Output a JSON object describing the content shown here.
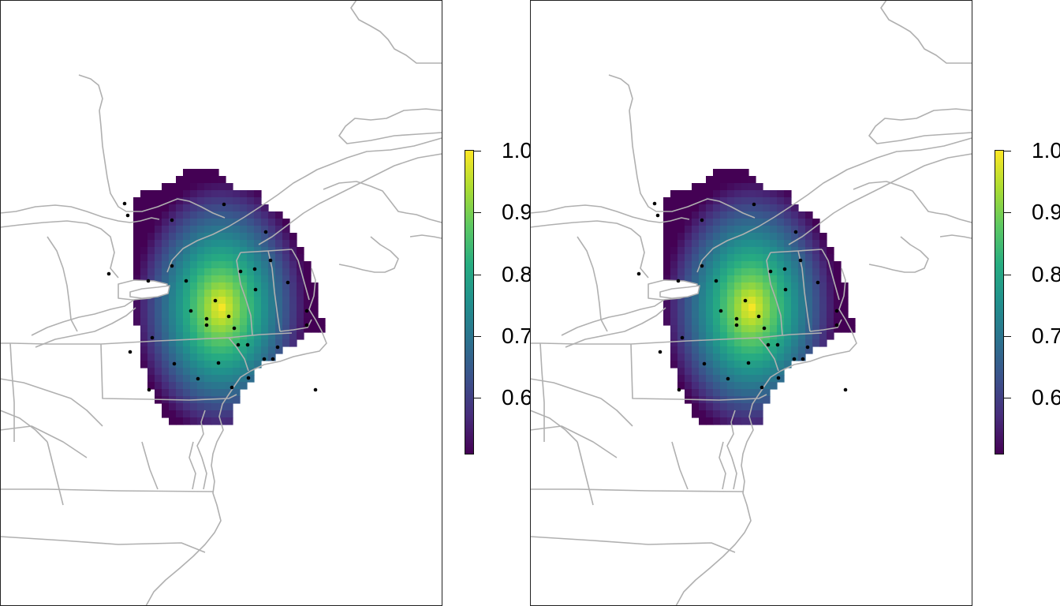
{
  "colorbar": {
    "min": 0.51,
    "max": 1.0,
    "palette": [
      "#440154",
      "#472d7b",
      "#3b528b",
      "#2c728e",
      "#21908d",
      "#27ad81",
      "#5cc863",
      "#aadc32",
      "#fde725"
    ],
    "ticks": [
      {
        "value": 1.0,
        "label": "1.0"
      },
      {
        "value": 0.9,
        "label": "0.9"
      },
      {
        "value": 0.8,
        "label": "0.8"
      },
      {
        "value": 0.7,
        "label": "0.7"
      },
      {
        "value": 0.6,
        "label": "0.6"
      }
    ]
  },
  "panels": [
    {
      "id": "left",
      "color_scale": "viridis",
      "boundary_color": "#b0b0b0",
      "point_color": "#000000"
    },
    {
      "id": "right",
      "color_scale": "viridis",
      "boundary_color": "#b0b0b0",
      "point_color": "#000000"
    }
  ]
}
